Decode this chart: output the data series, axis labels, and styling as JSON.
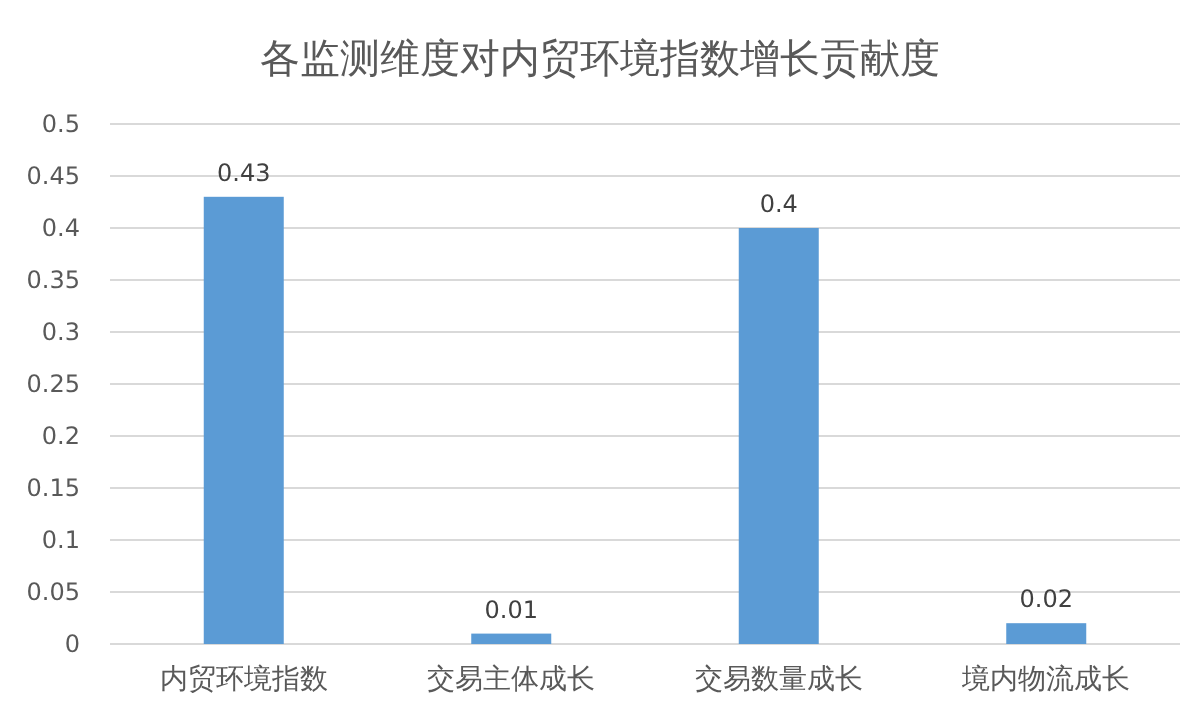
{
  "chart_data": {
    "type": "bar",
    "title": "各监测维度对内贸环境指数增长贡献度",
    "categories": [
      "内贸环境指数",
      "交易主体成长",
      "交易数量成长",
      "境内物流成长"
    ],
    "values": [
      0.43,
      0.01,
      0.4,
      0.02
    ],
    "color": "#5b9bd5",
    "ylim": [
      0,
      0.5
    ],
    "yticks": [
      0,
      0.05,
      0.1,
      0.15,
      0.2,
      0.25,
      0.3,
      0.35,
      0.4,
      0.45,
      0.5
    ],
    "grid": "y",
    "data_labels": true
  }
}
